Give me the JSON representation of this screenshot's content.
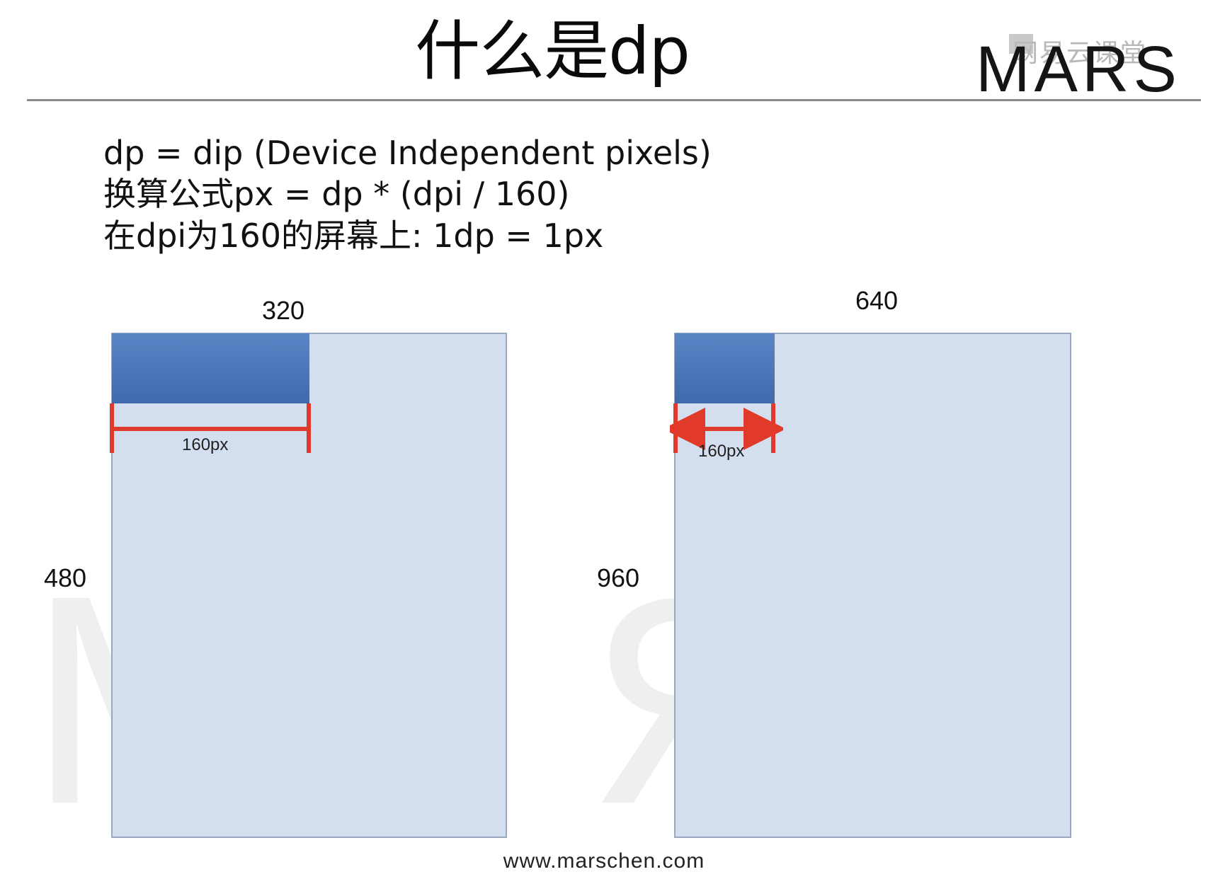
{
  "slide": {
    "title": "什么是dp"
  },
  "logo": {
    "brand": "MARS",
    "watermark": "网易云课堂"
  },
  "body": {
    "line1": "dp = dip (Device Independent pixels)",
    "line2": "换算公式px = dp * (dpi / 160)",
    "line3": "在dpi为160的屏幕上: 1dp = 1px"
  },
  "screens": [
    {
      "width_label": "320",
      "height_label": "480",
      "measure_label": "160px",
      "block_fraction_of_width": 0.5
    },
    {
      "width_label": "640",
      "height_label": "960",
      "measure_label": "160px",
      "block_fraction_of_width": 0.25
    }
  ],
  "footer": {
    "url": "www.marschen.com"
  },
  "colors": {
    "screen_fill": "#d3deef",
    "block_fill": "#4f79ba",
    "arrow": "#e13a2a",
    "rule": "#8a8a8a"
  }
}
